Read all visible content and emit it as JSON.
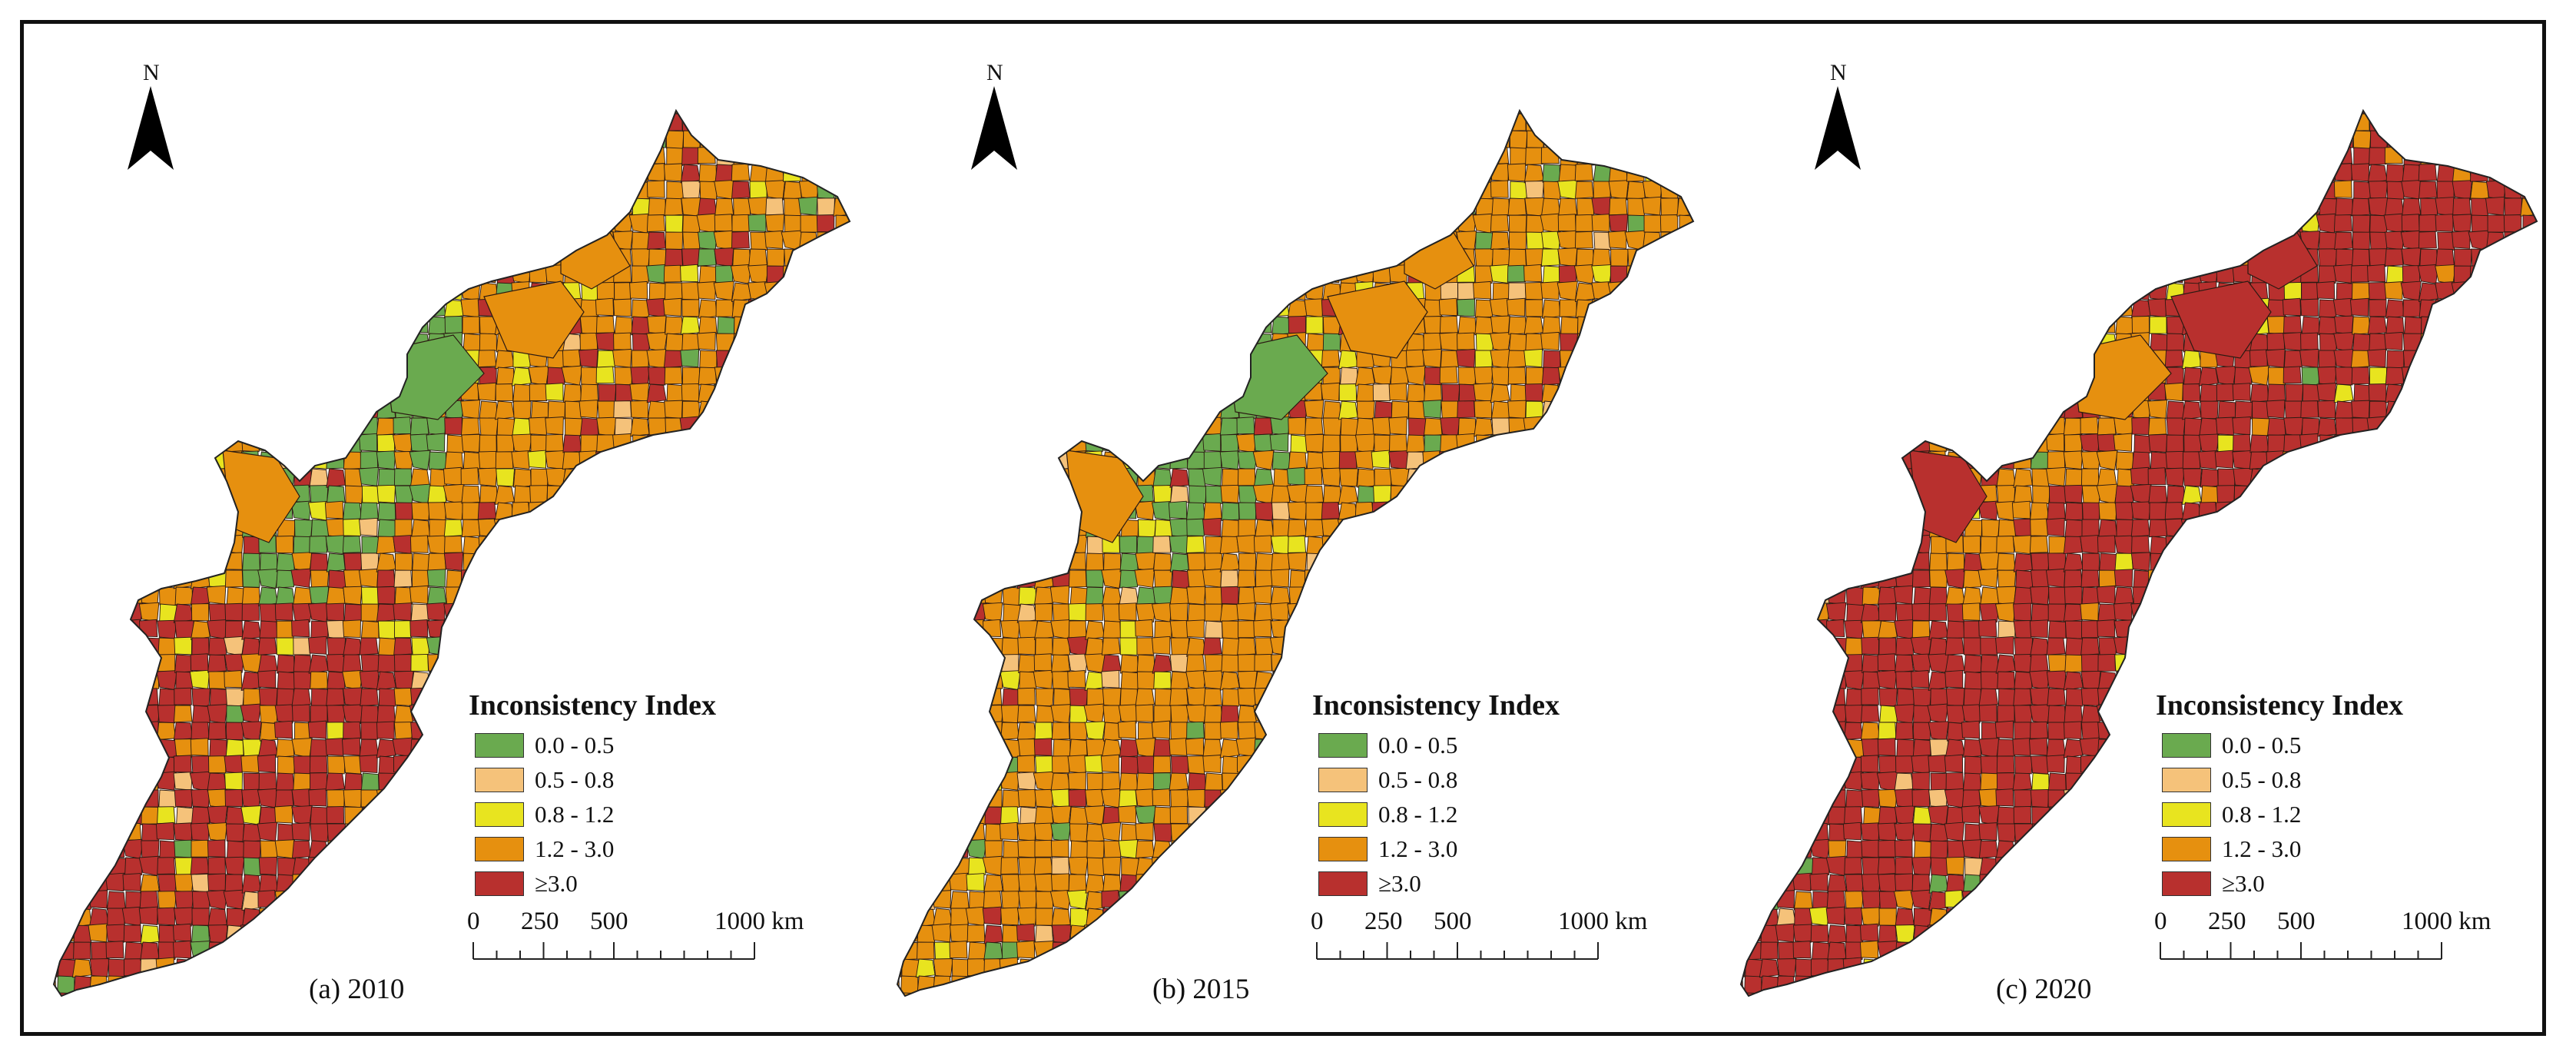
{
  "colors": {
    "class_0": "#6aaa4f",
    "class_1": "#f5c27a",
    "class_2": "#e8e41f",
    "class_3": "#e6900f",
    "class_4": "#b8302e",
    "outline": "#2b1a12"
  },
  "legend": {
    "title": "Inconsistency Index",
    "items": [
      {
        "label": "0.0 - 0.5",
        "color_key": "class_0"
      },
      {
        "label": "0.5 - 0.8",
        "color_key": "class_1"
      },
      {
        "label": "0.8 - 1.2",
        "color_key": "class_2"
      },
      {
        "label": "1.2 - 3.0",
        "color_key": "class_3"
      },
      {
        "label": "≥3.0",
        "color_key": "class_4"
      }
    ]
  },
  "north_arrow": {
    "label": "N",
    "icon": "north-arrow-icon"
  },
  "scale_bar": {
    "ticks": [
      "0",
      "250",
      "500",
      "1000 km"
    ]
  },
  "panels": [
    {
      "label": "(a) 2010",
      "zones": {
        "northeast": "class_3",
        "north_central": "class_0",
        "central": "class_3",
        "southwest": "class_4",
        "far_south": "class_4"
      },
      "class_shares": [
        0.08,
        0.08,
        0.12,
        0.44,
        0.28
      ]
    },
    {
      "label": "(b) 2015",
      "zones": {
        "northeast": "class_3",
        "north_central": "class_0",
        "central": "class_3",
        "southwest": "class_3",
        "far_south": "class_3"
      },
      "class_shares": [
        0.07,
        0.1,
        0.14,
        0.5,
        0.19
      ]
    },
    {
      "label": "(c) 2020",
      "zones": {
        "northeast": "class_4",
        "north_central": "class_3",
        "central": "class_4",
        "southwest": "class_4",
        "far_south": "class_4"
      },
      "class_shares": [
        0.02,
        0.03,
        0.06,
        0.22,
        0.67
      ]
    }
  ]
}
